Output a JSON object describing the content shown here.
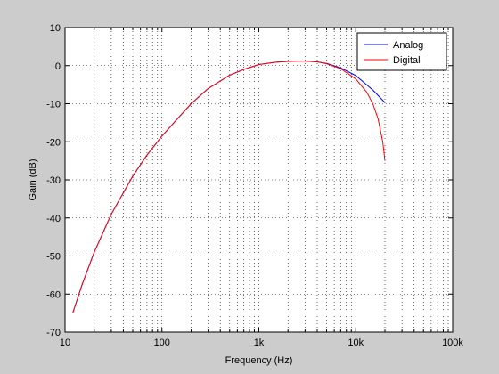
{
  "chart_data": {
    "type": "line",
    "title": "",
    "xlabel": "Frequency (Hz)",
    "ylabel": "Gain (dB)",
    "xscale": "log",
    "xlim": [
      10,
      100000
    ],
    "ylim": [
      -70,
      10
    ],
    "grid": true,
    "grid_style": "dotted",
    "legend_position": "top-right",
    "x_ticks": [
      10,
      100,
      1000,
      10000,
      100000
    ],
    "x_tick_labels": [
      "10",
      "100",
      "1k",
      "10k",
      "100k"
    ],
    "y_ticks": [
      -70,
      -60,
      -50,
      -40,
      -30,
      -20,
      -10,
      0,
      10
    ],
    "y_tick_labels": [
      "-70",
      "-60",
      "-50",
      "-40",
      "-30",
      "-20",
      "-10",
      "0",
      "10"
    ],
    "series": [
      {
        "name": "Analog",
        "color": "#0000ff",
        "x": [
          12,
          15,
          20,
          30,
          50,
          70,
          100,
          150,
          200,
          300,
          500,
          700,
          1000,
          1500,
          2000,
          2500,
          3000,
          4000,
          5000,
          7000,
          10000,
          15000,
          20000
        ],
        "y": [
          -65,
          -57.5,
          -49,
          -39,
          -29,
          -23.5,
          -18.5,
          -13.5,
          -10,
          -6,
          -2.5,
          -1,
          0.3,
          0.9,
          1.1,
          1.2,
          1.2,
          1.0,
          0.6,
          -0.6,
          -2.6,
          -6.4,
          -9.7
        ]
      },
      {
        "name": "Digital",
        "color": "#ff0000",
        "x": [
          12,
          15,
          20,
          30,
          50,
          70,
          100,
          150,
          200,
          300,
          500,
          700,
          1000,
          1500,
          2000,
          2500,
          3000,
          4000,
          5000,
          7000,
          10000,
          13000,
          15000,
          17000,
          19000,
          20000
        ],
        "y": [
          -65,
          -57.5,
          -49,
          -39,
          -29,
          -23.5,
          -18.5,
          -13.5,
          -10,
          -6,
          -2.5,
          -1,
          0.3,
          0.9,
          1.1,
          1.2,
          1.2,
          1.0,
          0.5,
          -0.8,
          -3.5,
          -7,
          -10,
          -14,
          -20,
          -25
        ]
      }
    ]
  }
}
